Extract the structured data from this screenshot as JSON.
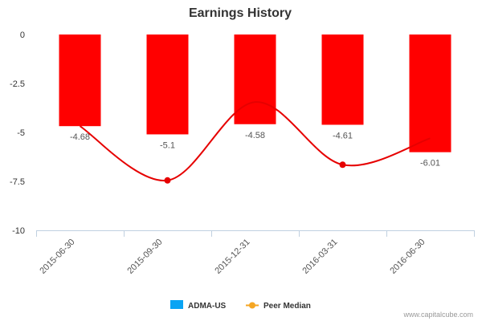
{
  "chart_data": {
    "type": "bar",
    "title": "Earnings History",
    "categories": [
      "2015-06-30",
      "2015-09-30",
      "2015-12-31",
      "2016-03-31",
      "2016-06-30"
    ],
    "series": [
      {
        "name": "ADMA-US",
        "type": "bar",
        "values": [
          -4.68,
          -5.1,
          -4.58,
          -4.61,
          -6.01
        ],
        "bar_color": "#ff0000",
        "legend_color": "#0aa4f4"
      },
      {
        "name": "Peer Median",
        "type": "spline",
        "values": [
          -4.68,
          -7.45,
          -3.45,
          -6.65,
          -5.3
        ],
        "line_color": "#e60000",
        "legend_color": "#f5a623"
      }
    ],
    "data_labels": [
      "-4.68",
      "-5.1",
      "-4.58",
      "-4.61",
      "-6.01"
    ],
    "yticks": [
      "0",
      "-2.5",
      "-5",
      "-7.5",
      "-10"
    ],
    "ylim": [
      -10,
      0
    ],
    "xlabel": "",
    "ylabel": "",
    "grid": false,
    "legend_position": "bottom-center"
  },
  "footer": {
    "credit": "www.capitalcube.com"
  }
}
